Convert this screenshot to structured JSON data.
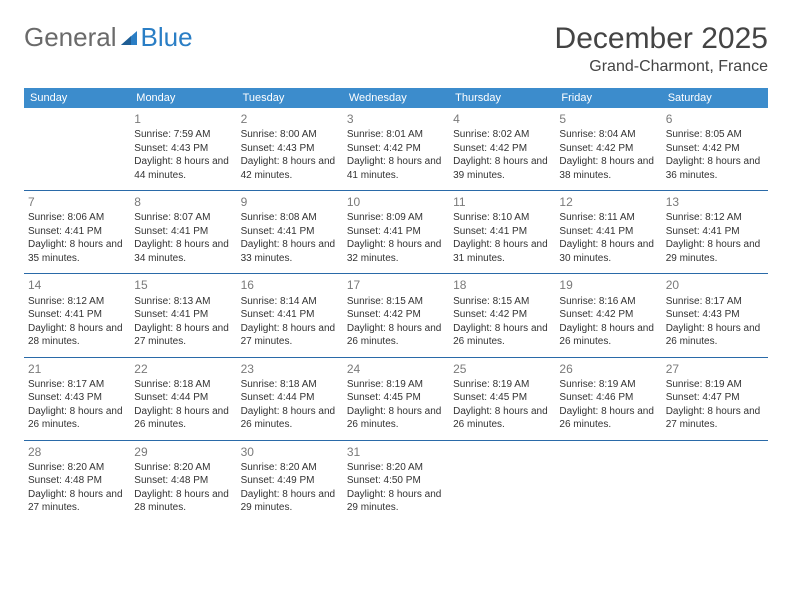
{
  "brand": {
    "word1": "General",
    "word2": "Blue",
    "icon_color": "#2a7ec5"
  },
  "header": {
    "title": "December 2025",
    "location": "Grand-Charmont, France"
  },
  "calendar": {
    "header_bg": "#3c8ccc",
    "header_text": "#ffffff",
    "border_color": "#2a6aa8",
    "daynum_color": "#7a7a7a",
    "text_color": "#333333",
    "days_of_week": [
      "Sunday",
      "Monday",
      "Tuesday",
      "Wednesday",
      "Thursday",
      "Friday",
      "Saturday"
    ],
    "weeks": [
      [
        null,
        {
          "n": "1",
          "sunrise": "7:59 AM",
          "sunset": "4:43 PM",
          "daylight": "8 hours and 44 minutes."
        },
        {
          "n": "2",
          "sunrise": "8:00 AM",
          "sunset": "4:43 PM",
          "daylight": "8 hours and 42 minutes."
        },
        {
          "n": "3",
          "sunrise": "8:01 AM",
          "sunset": "4:42 PM",
          "daylight": "8 hours and 41 minutes."
        },
        {
          "n": "4",
          "sunrise": "8:02 AM",
          "sunset": "4:42 PM",
          "daylight": "8 hours and 39 minutes."
        },
        {
          "n": "5",
          "sunrise": "8:04 AM",
          "sunset": "4:42 PM",
          "daylight": "8 hours and 38 minutes."
        },
        {
          "n": "6",
          "sunrise": "8:05 AM",
          "sunset": "4:42 PM",
          "daylight": "8 hours and 36 minutes."
        }
      ],
      [
        {
          "n": "7",
          "sunrise": "8:06 AM",
          "sunset": "4:41 PM",
          "daylight": "8 hours and 35 minutes."
        },
        {
          "n": "8",
          "sunrise": "8:07 AM",
          "sunset": "4:41 PM",
          "daylight": "8 hours and 34 minutes."
        },
        {
          "n": "9",
          "sunrise": "8:08 AM",
          "sunset": "4:41 PM",
          "daylight": "8 hours and 33 minutes."
        },
        {
          "n": "10",
          "sunrise": "8:09 AM",
          "sunset": "4:41 PM",
          "daylight": "8 hours and 32 minutes."
        },
        {
          "n": "11",
          "sunrise": "8:10 AM",
          "sunset": "4:41 PM",
          "daylight": "8 hours and 31 minutes."
        },
        {
          "n": "12",
          "sunrise": "8:11 AM",
          "sunset": "4:41 PM",
          "daylight": "8 hours and 30 minutes."
        },
        {
          "n": "13",
          "sunrise": "8:12 AM",
          "sunset": "4:41 PM",
          "daylight": "8 hours and 29 minutes."
        }
      ],
      [
        {
          "n": "14",
          "sunrise": "8:12 AM",
          "sunset": "4:41 PM",
          "daylight": "8 hours and 28 minutes."
        },
        {
          "n": "15",
          "sunrise": "8:13 AM",
          "sunset": "4:41 PM",
          "daylight": "8 hours and 27 minutes."
        },
        {
          "n": "16",
          "sunrise": "8:14 AM",
          "sunset": "4:41 PM",
          "daylight": "8 hours and 27 minutes."
        },
        {
          "n": "17",
          "sunrise": "8:15 AM",
          "sunset": "4:42 PM",
          "daylight": "8 hours and 26 minutes."
        },
        {
          "n": "18",
          "sunrise": "8:15 AM",
          "sunset": "4:42 PM",
          "daylight": "8 hours and 26 minutes."
        },
        {
          "n": "19",
          "sunrise": "8:16 AM",
          "sunset": "4:42 PM",
          "daylight": "8 hours and 26 minutes."
        },
        {
          "n": "20",
          "sunrise": "8:17 AM",
          "sunset": "4:43 PM",
          "daylight": "8 hours and 26 minutes."
        }
      ],
      [
        {
          "n": "21",
          "sunrise": "8:17 AM",
          "sunset": "4:43 PM",
          "daylight": "8 hours and 26 minutes."
        },
        {
          "n": "22",
          "sunrise": "8:18 AM",
          "sunset": "4:44 PM",
          "daylight": "8 hours and 26 minutes."
        },
        {
          "n": "23",
          "sunrise": "8:18 AM",
          "sunset": "4:44 PM",
          "daylight": "8 hours and 26 minutes."
        },
        {
          "n": "24",
          "sunrise": "8:19 AM",
          "sunset": "4:45 PM",
          "daylight": "8 hours and 26 minutes."
        },
        {
          "n": "25",
          "sunrise": "8:19 AM",
          "sunset": "4:45 PM",
          "daylight": "8 hours and 26 minutes."
        },
        {
          "n": "26",
          "sunrise": "8:19 AM",
          "sunset": "4:46 PM",
          "daylight": "8 hours and 26 minutes."
        },
        {
          "n": "27",
          "sunrise": "8:19 AM",
          "sunset": "4:47 PM",
          "daylight": "8 hours and 27 minutes."
        }
      ],
      [
        {
          "n": "28",
          "sunrise": "8:20 AM",
          "sunset": "4:48 PM",
          "daylight": "8 hours and 27 minutes."
        },
        {
          "n": "29",
          "sunrise": "8:20 AM",
          "sunset": "4:48 PM",
          "daylight": "8 hours and 28 minutes."
        },
        {
          "n": "30",
          "sunrise": "8:20 AM",
          "sunset": "4:49 PM",
          "daylight": "8 hours and 29 minutes."
        },
        {
          "n": "31",
          "sunrise": "8:20 AM",
          "sunset": "4:50 PM",
          "daylight": "8 hours and 29 minutes."
        },
        null,
        null,
        null
      ]
    ],
    "labels": {
      "sunrise": "Sunrise:",
      "sunset": "Sunset:",
      "daylight": "Daylight:"
    }
  }
}
